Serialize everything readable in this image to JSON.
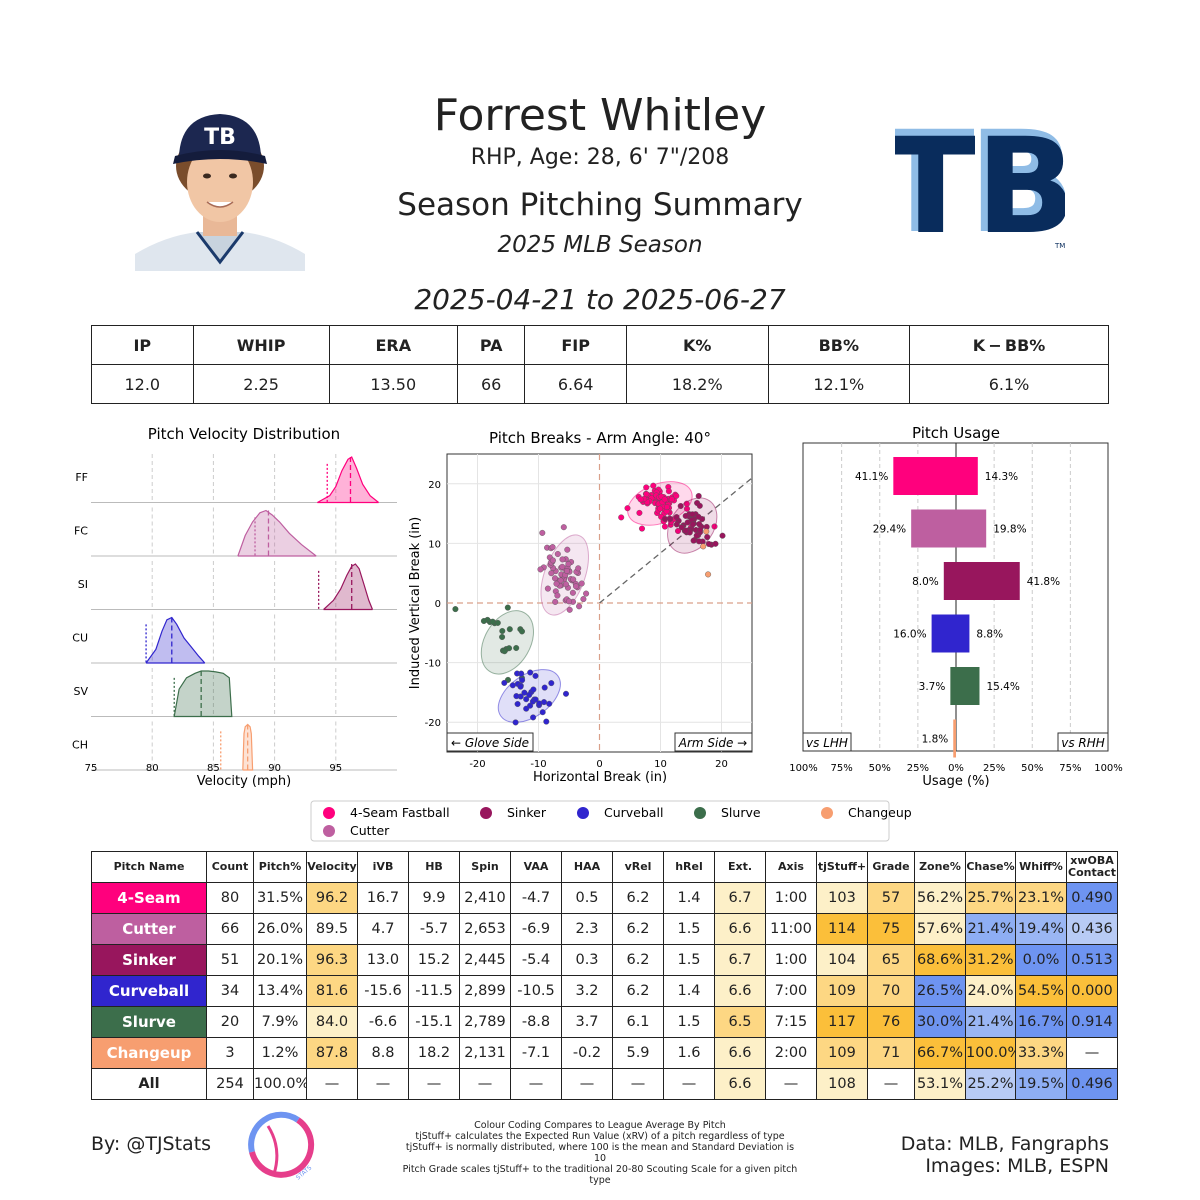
{
  "header": {
    "name": "Forrest Whitley",
    "info": "RHP, Age: 28, 6' 7\"/208",
    "title": "Season Pitching Summary",
    "season": "2025 MLB Season",
    "date_range": "2025-04-21 to 2025-06-27",
    "logo_text": "TB",
    "trademark": "TM",
    "cap_text": "TB"
  },
  "colors": {
    "4-Seam": "#FF007D",
    "Cutter": "#BE5FA0",
    "Sinker": "#98165D",
    "Curveball": "#3025CE",
    "Slurve": "#3C6E4B",
    "Changeup": "#F79E70",
    "navy": "#092C5C",
    "light_blue": "#8FBCE6"
  },
  "stats_table": {
    "headers": [
      "IP",
      "WHIP",
      "ERA",
      "PA",
      "FIP",
      "K%",
      "BB%",
      "K − BB%"
    ],
    "values": [
      "12.0",
      "2.25",
      "13.50",
      "66",
      "6.64",
      "18.2%",
      "12.1%",
      "6.1%"
    ]
  },
  "chart_data": [
    {
      "type": "area",
      "title": "Pitch Velocity Distribution",
      "xlabel": "Velocity (mph)",
      "xlim": [
        75,
        100
      ],
      "xticks": [
        "75",
        "80",
        "85",
        "90",
        "95"
      ],
      "series": [
        {
          "name": "FF",
          "color": "#FF007D",
          "mean": 96.2,
          "league": 94.3,
          "x": [
            93.5,
            94.5,
            95.0,
            95.5,
            96.0,
            96.3,
            96.7,
            97.2,
            97.8,
            98.5
          ],
          "y": [
            0.0,
            0.15,
            0.35,
            0.7,
            0.95,
            1.0,
            0.75,
            0.4,
            0.15,
            0.0
          ]
        },
        {
          "name": "FC",
          "color": "#BE5FA0",
          "mean": 89.5,
          "league": 88.4,
          "x": [
            87.0,
            87.6,
            88.2,
            88.8,
            89.3,
            89.8,
            90.4,
            91.2,
            92.2,
            93.4
          ],
          "y": [
            0.0,
            0.45,
            0.75,
            0.95,
            1.0,
            0.9,
            0.75,
            0.5,
            0.25,
            0.0
          ]
        },
        {
          "name": "SI",
          "color": "#98165D",
          "mean": 96.3,
          "league": 93.6,
          "x": [
            94.0,
            94.8,
            95.4,
            95.9,
            96.3,
            96.6,
            96.9,
            97.3,
            97.7,
            98.0
          ],
          "y": [
            0.0,
            0.2,
            0.45,
            0.75,
            0.95,
            1.0,
            0.9,
            0.55,
            0.2,
            0.0
          ]
        },
        {
          "name": "CU",
          "color": "#3025CE",
          "mean": 81.6,
          "league": 79.5,
          "x": [
            79.5,
            80.3,
            80.8,
            81.2,
            81.6,
            82.0,
            82.6,
            83.2,
            83.8,
            84.3
          ],
          "y": [
            0.0,
            0.3,
            0.7,
            0.95,
            1.0,
            0.85,
            0.55,
            0.35,
            0.15,
            0.0
          ]
        },
        {
          "name": "SV",
          "color": "#3C6E4B",
          "mean": 84.0,
          "league": 81.8,
          "x": [
            81.8,
            82.2,
            82.8,
            83.5,
            84.0,
            84.6,
            85.2,
            85.8,
            86.3,
            86.5
          ],
          "y": [
            0.0,
            0.6,
            0.85,
            0.95,
            1.0,
            1.0,
            0.98,
            0.95,
            0.85,
            0.0
          ]
        },
        {
          "name": "CH",
          "color": "#F79E70",
          "mean": 87.8,
          "league": 85.6,
          "x": [
            87.4,
            87.5,
            87.6,
            87.8,
            88.0,
            88.1,
            88.2
          ],
          "y": [
            0.0,
            0.8,
            0.95,
            1.0,
            0.95,
            0.8,
            0.0
          ]
        }
      ]
    },
    {
      "type": "scatter",
      "title": "Pitch Breaks - Arm Angle: 40°",
      "xlabel": "Horizontal Break (in)",
      "ylabel": "Induced Vertical Break (in)",
      "xlim": [
        -25,
        25
      ],
      "ylim": [
        -25,
        25
      ],
      "xticks": [
        "-20",
        "-10",
        "0",
        "10",
        "20"
      ],
      "yticks": [
        "20",
        "10",
        "0",
        "-10",
        "-20"
      ],
      "glove_label": "← Glove Side",
      "arm_label": "Arm Side →",
      "clusters": [
        {
          "name": "4-Seam Fastball",
          "color": "#FF007D",
          "cx": 9.9,
          "cy": 16.7,
          "sx": 2.5,
          "sy": 1.5,
          "count": 80,
          "angle": -20
        },
        {
          "name": "Sinker",
          "color": "#98165D",
          "cx": 15.2,
          "cy": 13.0,
          "sx": 1.6,
          "sy": 2.3,
          "count": 51,
          "angle": 35
        },
        {
          "name": "Cutter",
          "color": "#BE5FA0",
          "cx": -5.7,
          "cy": 4.7,
          "sx": 1.5,
          "sy": 3.2,
          "count": 66,
          "angle": 20
        },
        {
          "name": "Slurve",
          "color": "#3C6E4B",
          "cx": -15.1,
          "cy": -6.6,
          "sx": 1.7,
          "sy": 2.6,
          "count": 20,
          "angle": 30
        },
        {
          "name": "Curveball",
          "color": "#3025CE",
          "cx": -11.5,
          "cy": -15.6,
          "sx": 2.6,
          "sy": 1.6,
          "count": 34,
          "angle": -35
        },
        {
          "name": "Changeup",
          "color": "#F79E70",
          "cx": 18.2,
          "cy": 8.8,
          "sx": 0.6,
          "sy": 2.5,
          "count": 3,
          "angle": 0
        }
      ],
      "changeup_points": [
        [
          17.5,
          12.0
        ],
        [
          17.0,
          9.5
        ],
        [
          17.8,
          4.8
        ]
      ]
    },
    {
      "type": "bar",
      "title": "Pitch Usage",
      "xlabel": "Usage (%)",
      "xlim": [
        -100,
        100
      ],
      "xticks": [
        "100%",
        "75%",
        "50%",
        "25%",
        "0%",
        "25%",
        "50%",
        "75%",
        "100%"
      ],
      "left_label": "vs LHH",
      "right_label": "vs RHH",
      "categories": [
        "4-Seam",
        "Cutter",
        "Sinker",
        "Curveball",
        "Slurve",
        "Changeup"
      ],
      "series": [
        {
          "name": "vs LHH",
          "values": [
            41.1,
            29.4,
            8.0,
            16.0,
            3.7,
            1.8
          ],
          "labels": [
            "41.1%",
            "29.4%",
            "8.0%",
            "16.0%",
            "3.7%",
            "1.8%"
          ]
        },
        {
          "name": "vs RHH",
          "values": [
            14.3,
            19.8,
            41.8,
            8.8,
            15.4,
            0.0
          ],
          "labels": [
            "14.3%",
            "19.8%",
            "41.8%",
            "8.8%",
            "15.4%",
            ""
          ]
        }
      ]
    },
    {
      "type": "table",
      "columns": [
        "Pitch Name",
        "Count",
        "Pitch%",
        "Velocity",
        "iVB",
        "HB",
        "Spin",
        "VAA",
        "HAA",
        "vRel",
        "hRel",
        "Ext.",
        "Axis",
        "tjStuff+",
        "Grade",
        "Zone%",
        "Chase%",
        "Whiff%",
        "xwOBA Contact"
      ],
      "rows": [
        {
          "name": "4-Seam",
          "cells": [
            "80",
            "31.5%",
            "96.2",
            "16.7",
            "9.9",
            "2,410",
            "-4.7",
            "0.5",
            "6.2",
            "1.4",
            "6.7",
            "1:00",
            "103",
            "57",
            "56.2%",
            "25.7%",
            "23.1%",
            "0.490"
          ],
          "colors": [
            "",
            "",
            "#FDD783",
            "",
            "",
            "",
            "",
            "",
            "",
            "",
            "#FDF0C8",
            "",
            "#FDF0C8",
            "#FDD783",
            "#FDF0C8",
            "#FDD783",
            "#FDD783",
            "#6E94F1"
          ]
        },
        {
          "name": "Cutter",
          "cells": [
            "66",
            "26.0%",
            "89.5",
            "4.7",
            "-5.7",
            "2,653",
            "-6.9",
            "2.3",
            "6.2",
            "1.5",
            "6.6",
            "11:00",
            "114",
            "75",
            "57.6%",
            "21.4%",
            "19.4%",
            "0.436"
          ],
          "colors": [
            "",
            "",
            "",
            "",
            "",
            "",
            "",
            "",
            "",
            "",
            "#FDF0C8",
            "",
            "#FBBF3A",
            "#FBBF3A",
            "#FDF0C8",
            "#8EAEF4",
            "#9AB6F4",
            "#B8CBF5"
          ]
        },
        {
          "name": "Sinker",
          "cells": [
            "51",
            "20.1%",
            "96.3",
            "13.0",
            "15.2",
            "2,445",
            "-5.4",
            "0.3",
            "6.2",
            "1.5",
            "6.7",
            "1:00",
            "104",
            "65",
            "68.6%",
            "31.2%",
            "0.0%",
            "0.513"
          ],
          "colors": [
            "",
            "",
            "#FDD783",
            "",
            "",
            "",
            "",
            "",
            "",
            "",
            "#FDF0C8",
            "",
            "#FDF0C8",
            "#FDD783",
            "#FBBF3A",
            "#FBBF3A",
            "#6E94F1",
            "#6E94F1"
          ]
        },
        {
          "name": "Curveball",
          "cells": [
            "34",
            "13.4%",
            "81.6",
            "-15.6",
            "-11.5",
            "2,899",
            "-10.5",
            "3.2",
            "6.2",
            "1.4",
            "6.6",
            "7:00",
            "109",
            "70",
            "26.5%",
            "24.0%",
            "54.5%",
            "0.000"
          ],
          "colors": [
            "",
            "",
            "#FDD783",
            "",
            "",
            "",
            "",
            "",
            "",
            "",
            "#FDF0C8",
            "",
            "#FDD783",
            "#FDD783",
            "#6E94F1",
            "#FDF0C8",
            "#FBBF3A",
            "#FBBF3A"
          ]
        },
        {
          "name": "Slurve",
          "cells": [
            "20",
            "7.9%",
            "84.0",
            "-6.6",
            "-15.1",
            "2,789",
            "-8.8",
            "3.7",
            "6.1",
            "1.5",
            "6.5",
            "7:15",
            "117",
            "76",
            "30.0%",
            "21.4%",
            "16.7%",
            "0.914"
          ],
          "colors": [
            "",
            "",
            "#FDF0C8",
            "",
            "",
            "",
            "",
            "",
            "",
            "",
            "#FDD783",
            "",
            "#FBBF3A",
            "#FBBF3A",
            "#6E94F1",
            "#9AB6F4",
            "#6E94F1",
            "#6E94F1"
          ]
        },
        {
          "name": "Changeup",
          "cells": [
            "3",
            "1.2%",
            "87.8",
            "8.8",
            "18.2",
            "2,131",
            "-7.1",
            "-0.2",
            "5.9",
            "1.6",
            "6.6",
            "2:00",
            "109",
            "71",
            "66.7%",
            "100.0%",
            "33.3%",
            "—"
          ],
          "colors": [
            "",
            "",
            "#FDD783",
            "",
            "",
            "",
            "",
            "",
            "",
            "",
            "#FDF0C8",
            "",
            "#FDD783",
            "#FDD783",
            "#FBBF3A",
            "#FBBF3A",
            "#FDD783",
            ""
          ]
        },
        {
          "name": "All",
          "cells": [
            "254",
            "100.0%",
            "—",
            "—",
            "—",
            "—",
            "—",
            "—",
            "—",
            "—",
            "6.6",
            "—",
            "108",
            "—",
            "53.1%",
            "25.2%",
            "19.5%",
            "0.496"
          ],
          "colors": [
            "",
            "",
            "",
            "",
            "",
            "",
            "",
            "",
            "",
            "",
            "#FDF0C8",
            "",
            "#FDF0C8",
            "",
            "#FDF0C8",
            "#B8CBF5",
            "#8EAEF4",
            "#6E94F1"
          ]
        }
      ]
    }
  ],
  "legend": {
    "items": [
      {
        "label": "4-Seam Fastball",
        "color": "#FF007D"
      },
      {
        "label": "Sinker",
        "color": "#98165D"
      },
      {
        "label": "Curveball",
        "color": "#3025CE"
      },
      {
        "label": "Slurve",
        "color": "#3C6E4B"
      },
      {
        "label": "Changeup",
        "color": "#F79E70"
      },
      {
        "label": "Cutter",
        "color": "#BE5FA0"
      }
    ]
  },
  "footer": {
    "by": "By: @TJStats",
    "notes": [
      "Colour Coding Compares to League Average By Pitch",
      "tjStuff+ calculates the Expected Run Value (xRV) of a pitch regardless of type",
      "tjStuff+ is normally distributed, where 100 is the mean and Standard Deviation is 10",
      "Pitch Grade scales tjStuff+ to the traditional 20-80 Scouting Scale for a given pitch type"
    ],
    "data_source": "Data: MLB, Fangraphs",
    "images_source": "Images: MLB, ESPN",
    "stamp_text": "STATS"
  }
}
